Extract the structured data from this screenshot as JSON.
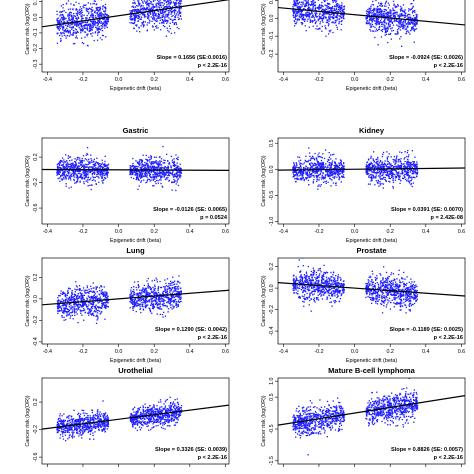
{
  "chart_data": [
    {
      "type": "scatter",
      "title": "",
      "xlabel": "Epigenetic drift (beta)",
      "ylabel": "Cancer risk (log(OR))",
      "xlim": [
        -0.43,
        0.62
      ],
      "ylim": [
        -0.35,
        0.2
      ],
      "xticks": [
        "-0.4",
        "-0.2",
        "0.0",
        "0.2",
        "0.4",
        "0.6"
      ],
      "yticks": [
        {
          "label": "-0.3",
          "v": -0.3
        },
        {
          "label": "-0.2",
          "v": -0.2
        },
        {
          "label": "-0.1",
          "v": -0.1
        },
        {
          "label": "0.0",
          "v": 0.0
        },
        {
          "label": "0.1",
          "v": 0.1
        }
      ],
      "clusters": [
        {
          "xmin": -0.35,
          "xmax": -0.06,
          "sd": 0.055
        },
        {
          "xmin": 0.06,
          "xmax": 0.35,
          "sd": 0.06
        }
      ],
      "fit": {
        "intercept": 0.01,
        "slope": 0.1656
      },
      "annotation": [
        "Slope = 0.1656 (SE:0.0016)",
        "p < 2.2E-16"
      ],
      "color": "#1f1fff"
    },
    {
      "type": "scatter",
      "title": "",
      "xlabel": "Epigenetic drift (beta)",
      "ylabel": "Cancer risk (log(OR))",
      "xlim": [
        -0.43,
        0.62
      ],
      "ylim": [
        -0.3,
        0.18
      ],
      "xticks": [
        "-0.4",
        "-0.2",
        "0.0",
        "0.2",
        "0.4",
        "0.6"
      ],
      "yticks": [
        {
          "label": "-0.2",
          "v": -0.2
        },
        {
          "label": "-0.1",
          "v": -0.1
        },
        {
          "label": "0.0",
          "v": 0.0
        },
        {
          "label": "0.1",
          "v": 0.1
        }
      ],
      "clusters": [
        {
          "xmin": -0.35,
          "xmax": -0.06,
          "sd": 0.045
        },
        {
          "xmin": 0.06,
          "xmax": 0.35,
          "sd": 0.045
        }
      ],
      "fit": {
        "intercept": 0.02,
        "slope": -0.0924
      },
      "annotation": [
        "Slope = -0.0924 (SE: 0.0026)",
        "p < 2.2E-16"
      ],
      "color": "#1f1fff"
    },
    {
      "type": "scatter",
      "title": "Gastric",
      "xlabel": "Epigenetic drift (beta)",
      "ylabel": "Cancer risk (log(OR))",
      "xlim": [
        -0.43,
        0.62
      ],
      "ylim": [
        -0.85,
        0.5
      ],
      "xticks": [
        "-0.4",
        "-0.2",
        "0.0",
        "0.2",
        "0.4",
        "0.6"
      ],
      "yticks": [
        {
          "label": "-0.6",
          "v": -0.6
        },
        {
          "label": "-0.2",
          "v": -0.2
        },
        {
          "label": "0.2",
          "v": 0.2
        }
      ],
      "clusters": [
        {
          "xmin": -0.35,
          "xmax": -0.06,
          "sd": 0.1
        },
        {
          "xmin": 0.06,
          "xmax": 0.35,
          "sd": 0.1
        }
      ],
      "fit": {
        "intercept": 0.0,
        "slope": -0.0126
      },
      "annotation": [
        "Slope = -0.0126 (SE: 0.0065)",
        "p = 0.0524"
      ],
      "color": "#1f1fff"
    },
    {
      "type": "scatter",
      "title": "Kidney",
      "xlabel": "Epigenetic drift (beta)",
      "ylabel": "Cancer risk (log(OR))",
      "xlim": [
        -0.43,
        0.62
      ],
      "ylim": [
        -1.05,
        0.6
      ],
      "xticks": [
        "-0.4",
        "-0.2",
        "0.0",
        "0.2",
        "0.4",
        "0.6"
      ],
      "yticks": [
        {
          "label": "-1.0",
          "v": -1.0
        },
        {
          "label": "-0.5",
          "v": -0.5
        },
        {
          "label": "0.0",
          "v": 0.0
        },
        {
          "label": "0.5",
          "v": 0.5
        }
      ],
      "clusters": [
        {
          "xmin": -0.35,
          "xmax": -0.06,
          "sd": 0.13
        },
        {
          "xmin": 0.06,
          "xmax": 0.35,
          "sd": 0.13
        }
      ],
      "fit": {
        "intercept": 0.0,
        "slope": 0.0391
      },
      "annotation": [
        "Slope = 0.0391 (SE: 0.0070)",
        "p = 2.42E-08"
      ],
      "color": "#1f1fff"
    },
    {
      "type": "scatter",
      "title": "Lung",
      "xlabel": "Epigenetic drift (beta)",
      "ylabel": "Cancer risk (log(OR))",
      "xlim": [
        -0.43,
        0.62
      ],
      "ylim": [
        -0.42,
        0.38
      ],
      "xticks": [
        "-0.4",
        "-0.2",
        "0.0",
        "0.2",
        "0.4",
        "0.6"
      ],
      "yticks": [
        {
          "label": "-0.4",
          "v": -0.4
        },
        {
          "label": "-0.2",
          "v": -0.2
        },
        {
          "label": "0.0",
          "v": 0.0
        },
        {
          "label": "0.2",
          "v": 0.2
        }
      ],
      "clusters": [
        {
          "xmin": -0.35,
          "xmax": -0.06,
          "sd": 0.07
        },
        {
          "xmin": 0.06,
          "xmax": 0.35,
          "sd": 0.07
        }
      ],
      "fit": {
        "intercept": 0.0,
        "slope": 0.129
      },
      "annotation": [
        "Slope = 0.1290 (SE: 0.0042)",
        "p < 2.2E-16"
      ],
      "color": "#1f1fff"
    },
    {
      "type": "scatter",
      "title": "Prostate",
      "xlabel": "Epigenetic drift (beta)",
      "ylabel": "Cancer risk (log(OR))",
      "xlim": [
        -0.43,
        0.62
      ],
      "ylim": [
        -0.52,
        0.28
      ],
      "xticks": [
        "-0.4",
        "-0.2",
        "0.0",
        "0.2",
        "0.4",
        "0.6"
      ],
      "yticks": [
        {
          "label": "-0.4",
          "v": -0.4
        },
        {
          "label": "-0.2",
          "v": -0.2
        },
        {
          "label": "0.0",
          "v": 0.0
        },
        {
          "label": "0.2",
          "v": 0.2
        }
      ],
      "clusters": [
        {
          "xmin": -0.35,
          "xmax": -0.06,
          "sd": 0.07
        },
        {
          "xmin": 0.06,
          "xmax": 0.35,
          "sd": 0.07
        }
      ],
      "fit": {
        "intercept": 0.0,
        "slope": -0.1189
      },
      "annotation": [
        "Slope = -0.1189 (SE: 0.0025)",
        "p < 2.2E-16"
      ],
      "color": "#1f1fff"
    },
    {
      "type": "scatter",
      "title": "Urothelial",
      "xlabel": "",
      "ylabel": "Cancer risk (log(OR))",
      "xlim": [
        -0.43,
        0.62
      ],
      "ylim": [
        -0.7,
        0.55
      ],
      "xticks": [],
      "yticks": [
        {
          "label": "-0.6",
          "v": -0.6
        },
        {
          "label": "-0.2",
          "v": -0.2
        },
        {
          "label": "0.2",
          "v": 0.2
        }
      ],
      "clusters": [
        {
          "xmin": -0.35,
          "xmax": -0.06,
          "sd": 0.08
        },
        {
          "xmin": 0.06,
          "xmax": 0.35,
          "sd": 0.08
        }
      ],
      "fit": {
        "intercept": -0.05,
        "slope": 0.3326
      },
      "annotation": [
        "Slope = 0.3326 (SE: 0.0039)",
        "p < 2.2E-16"
      ],
      "color": "#1f1fff"
    },
    {
      "type": "scatter",
      "title": "Mature B-cell lymphoma",
      "xlabel": "",
      "ylabel": "Cancer risk (log(OR))",
      "xlim": [
        -0.43,
        0.62
      ],
      "ylim": [
        -1.6,
        1.1
      ],
      "xticks": [],
      "yticks": [
        {
          "label": "-1.5",
          "v": -1.5
        },
        {
          "label": "-0.5",
          "v": -0.5
        },
        {
          "label": "0.5",
          "v": 0.5
        },
        {
          "label": "1.0",
          "v": 1.0
        }
      ],
      "clusters": [
        {
          "xmin": -0.35,
          "xmax": -0.06,
          "sd": 0.22
        },
        {
          "xmin": 0.06,
          "xmax": 0.35,
          "sd": 0.22
        }
      ],
      "fit": {
        "intercept": 0.0,
        "slope": 0.8826
      },
      "annotation": [
        "Slope = 0.8826 (SE: 0.0057)",
        "p < 2.2E-16"
      ],
      "color": "#1f1fff"
    }
  ]
}
